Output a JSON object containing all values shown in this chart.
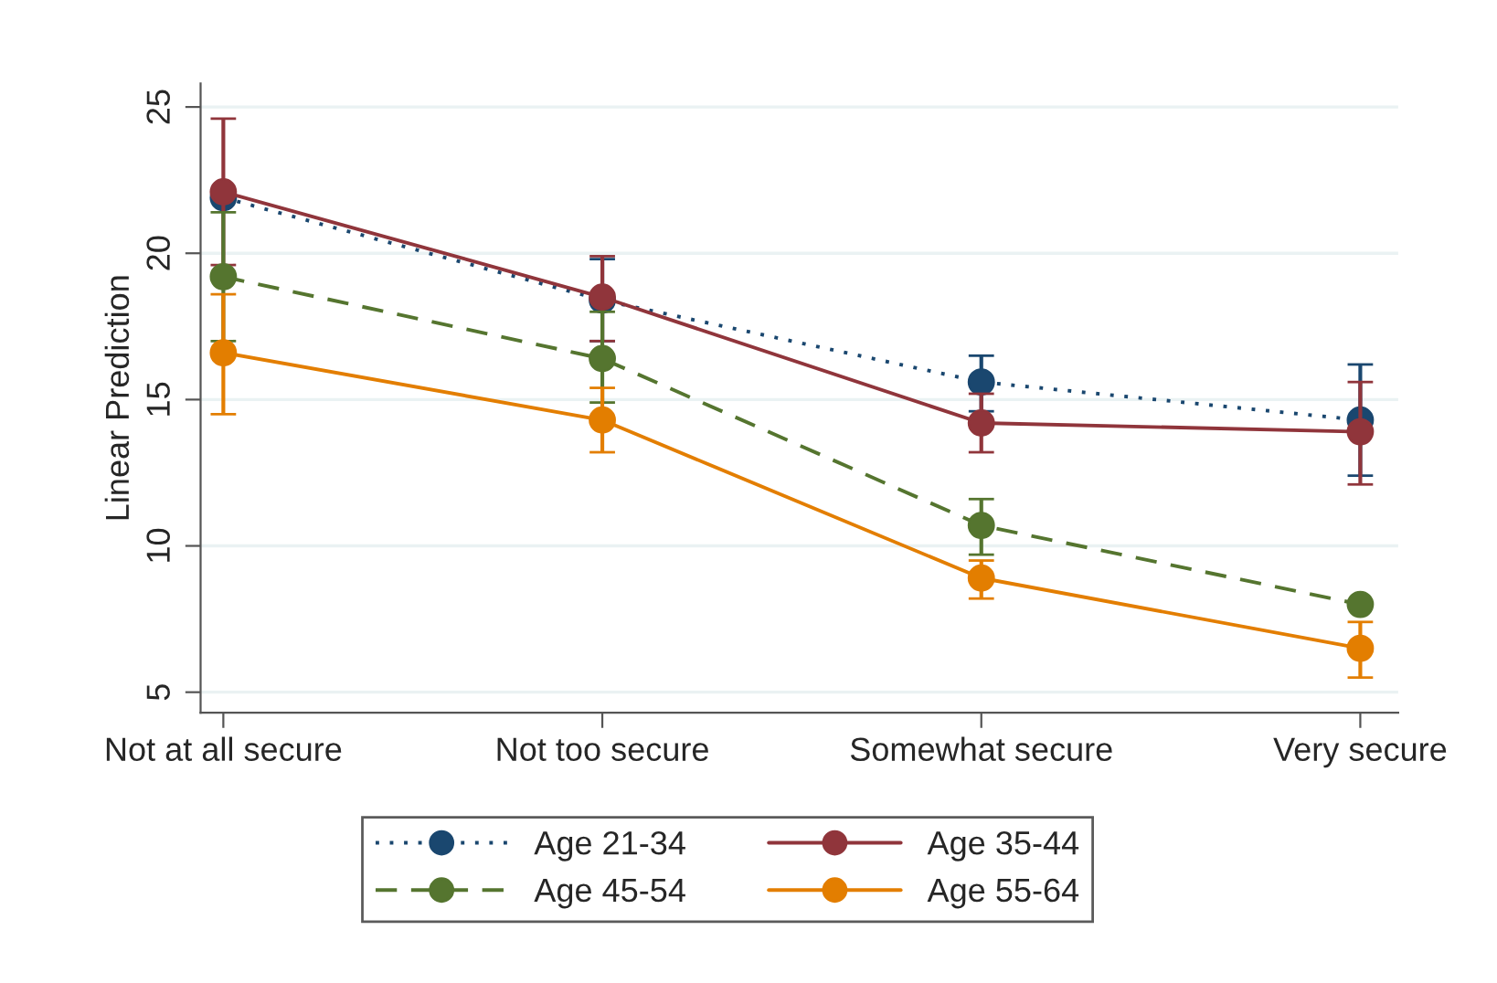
{
  "chart_data": {
    "type": "line",
    "ylabel": "Linear Prediction",
    "categories": [
      "Not at all secure",
      "Not too secure",
      "Somewhat secure",
      "Very secure"
    ],
    "series": [
      {
        "name": "Age 21-34",
        "color": "#1a476f",
        "line_style": "dotted",
        "values": [
          21.9,
          18.4,
          15.6,
          14.3
        ],
        "errors": [
          null,
          [
            17.0,
            19.8
          ],
          [
            14.6,
            16.5
          ],
          [
            12.4,
            16.2
          ]
        ]
      },
      {
        "name": "Age 35-44",
        "color": "#90353b",
        "line_style": "solid",
        "values": [
          22.1,
          18.5,
          14.2,
          13.9
        ],
        "errors": [
          [
            19.6,
            24.6
          ],
          [
            17.0,
            19.9
          ],
          [
            13.2,
            15.2
          ],
          [
            12.1,
            15.6
          ]
        ]
      },
      {
        "name": "Age 45-54",
        "color": "#55752f",
        "line_style": "dashed",
        "values": [
          19.2,
          16.4,
          10.7,
          8.0
        ],
        "errors": [
          [
            17.0,
            21.4
          ],
          [
            14.9,
            18.0
          ],
          [
            9.7,
            11.6
          ],
          null
        ]
      },
      {
        "name": "Age 55-64",
        "color": "#e37e00",
        "line_style": "solid",
        "values": [
          16.6,
          14.3,
          8.9,
          6.5
        ],
        "errors": [
          [
            14.5,
            18.6
          ],
          [
            13.2,
            15.4
          ],
          [
            8.2,
            9.5
          ],
          [
            5.5,
            7.4
          ]
        ]
      }
    ],
    "ylim": [
      4.3,
      25.8
    ],
    "yticks": [
      5,
      10,
      15,
      20,
      25
    ],
    "grid": "y",
    "marker": "circle",
    "legend": "bottom"
  }
}
